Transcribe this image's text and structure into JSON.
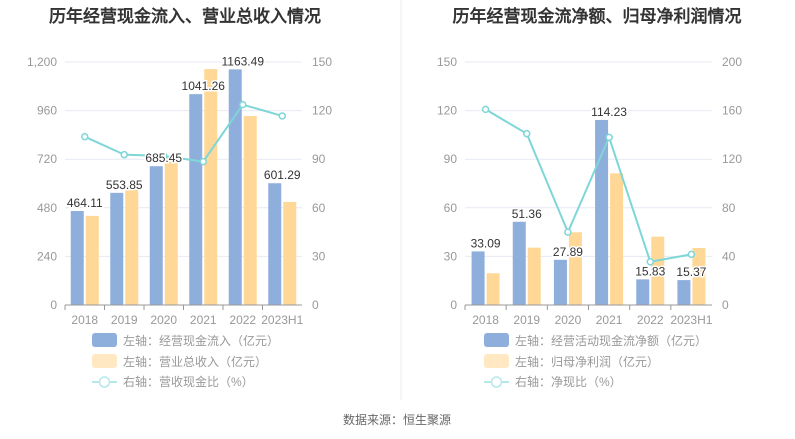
{
  "source": "数据来源：恒生聚源",
  "colors": {
    "bar1": "#8eaedc",
    "bar2": "#ffd898",
    "line": "#7fd6d8",
    "grid": "#e6e9f2",
    "axis": "#999999"
  },
  "chart_data": [
    {
      "type": "bar",
      "title": "历年经营现金流入、营业总收入情况",
      "categories": [
        "2018",
        "2019",
        "2020",
        "2021",
        "2022",
        "2023H1"
      ],
      "left_axis": {
        "ylim": [
          0,
          1200
        ],
        "ticks": [
          "0",
          "240",
          "480",
          "720",
          "960",
          "1,200"
        ]
      },
      "right_axis": {
        "ylim": [
          0,
          150
        ],
        "ticks": [
          "0",
          "30",
          "60",
          "90",
          "120",
          "150"
        ]
      },
      "series": [
        {
          "name": "左轴：经营现金流入（亿元）",
          "type": "bar",
          "axis": "left",
          "values": [
            464.11,
            553.85,
            685.45,
            1041.26,
            1163.49,
            601.29
          ],
          "labels": [
            "464.11",
            "553.85",
            "685.45",
            "1041.26",
            "1163.49",
            "601.29"
          ]
        },
        {
          "name": "左轴：营业总收入（亿元）",
          "type": "bar",
          "axis": "left",
          "values": [
            440,
            588,
            736,
            1165,
            933,
            509
          ]
        },
        {
          "name": "右轴：营收现金比（%）",
          "type": "line",
          "axis": "right",
          "values": [
            103.9,
            92.8,
            92.0,
            88.5,
            123.7,
            116.7
          ]
        }
      ],
      "grid": true,
      "legend": "bottom"
    },
    {
      "type": "bar",
      "title": "历年经营现金流净额、归母净利润情况",
      "categories": [
        "2018",
        "2019",
        "2020",
        "2021",
        "2022",
        "2023H1"
      ],
      "left_axis": {
        "ylim": [
          0,
          150
        ],
        "ticks": [
          "0",
          "30",
          "60",
          "90",
          "120",
          "150"
        ]
      },
      "right_axis": {
        "ylim": [
          0,
          200
        ],
        "ticks": [
          "0",
          "40",
          "80",
          "120",
          "160",
          "200"
        ]
      },
      "series": [
        {
          "name": "左轴：经营活动现金流净额（亿元）",
          "type": "bar",
          "axis": "left",
          "values": [
            33.09,
            51.36,
            27.89,
            114.23,
            15.83,
            15.37
          ],
          "labels": [
            "33.09",
            "51.36",
            "27.89",
            "114.23",
            "15.83",
            "15.37"
          ]
        },
        {
          "name": "左轴：归母净利润（亿元）",
          "type": "bar",
          "axis": "left",
          "values": [
            19.6,
            35.4,
            44.9,
            81.3,
            42.2,
            35.2
          ]
        },
        {
          "name": "右轴：净现比（%）",
          "type": "line",
          "axis": "right",
          "values": [
            161,
            141,
            60,
            138,
            35.6,
            41.7
          ]
        }
      ],
      "grid": true,
      "legend": "bottom"
    }
  ]
}
